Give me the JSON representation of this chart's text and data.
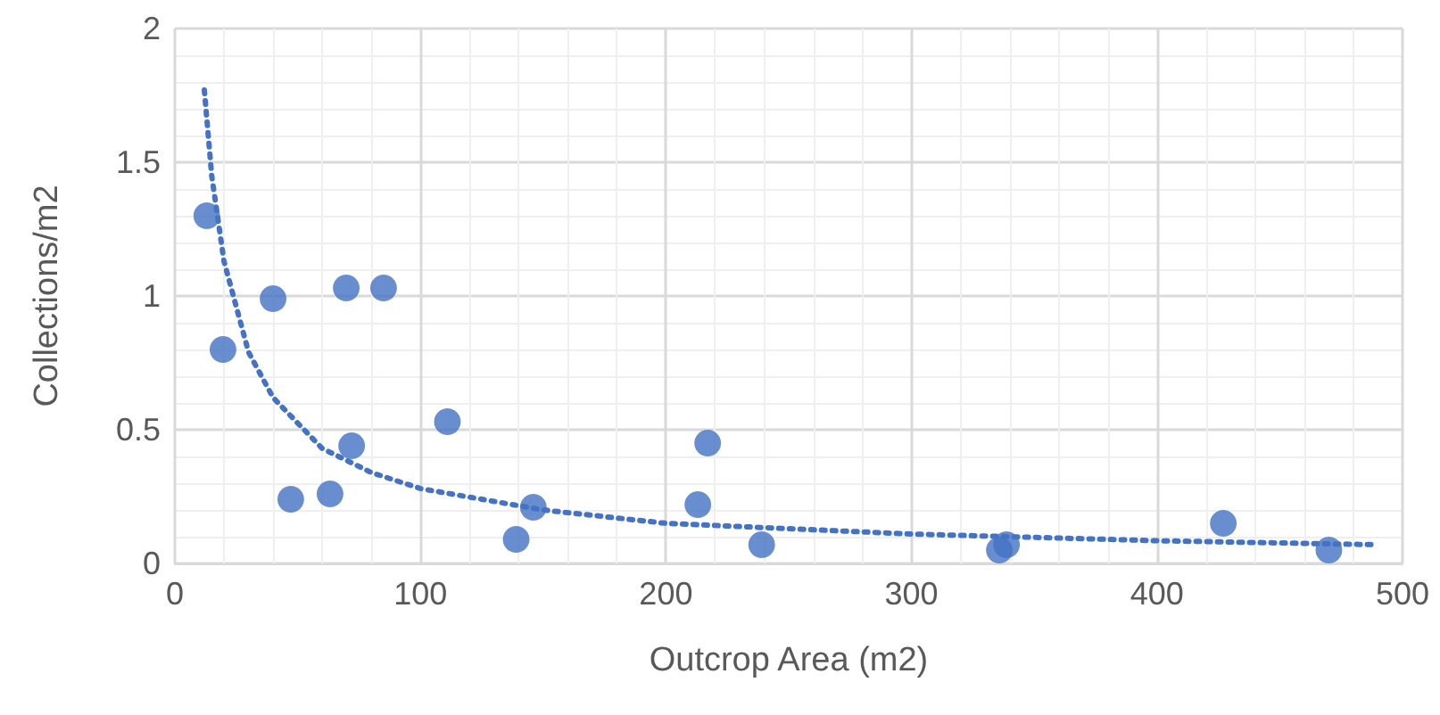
{
  "chart_data": {
    "type": "scatter",
    "xlabel": "Outcrop Area (m2)",
    "ylabel": "Collections/m2",
    "xlim": [
      0,
      500
    ],
    "xticks": [
      0,
      100,
      200,
      300,
      400,
      500
    ],
    "ylim": [
      0,
      2
    ],
    "yticks": [
      0,
      0.5,
      1,
      1.5,
      2
    ],
    "grid": true,
    "marker": "circle",
    "series": [
      {
        "color": "#4472c4",
        "x": [
          13,
          19.6,
          40,
          69.8,
          85,
          47.2,
          63.2,
          72,
          111,
          139,
          146,
          213,
          217,
          239,
          335.8,
          338.7,
          427,
          470
        ],
        "values": [
          1.3,
          0.8,
          0.99,
          1.03,
          1.03,
          0.24,
          0.26,
          0.44,
          0.53,
          0.09,
          0.21,
          0.22,
          0.45,
          0.07,
          0.05,
          0.07,
          0.15,
          0.05
        ]
      },
      {
        "type": "line",
        "color": "#4472c4",
        "line_style": "dotted",
        "marker": "none",
        "x": [
          12,
          15,
          20,
          30,
          40,
          60,
          80,
          100,
          150,
          200,
          300,
          400,
          490
        ],
        "values": [
          1.77,
          1.45,
          1.13,
          0.79,
          0.62,
          0.43,
          0.34,
          0.28,
          0.2,
          0.15,
          0.11,
          0.085,
          0.07
        ]
      }
    ]
  }
}
